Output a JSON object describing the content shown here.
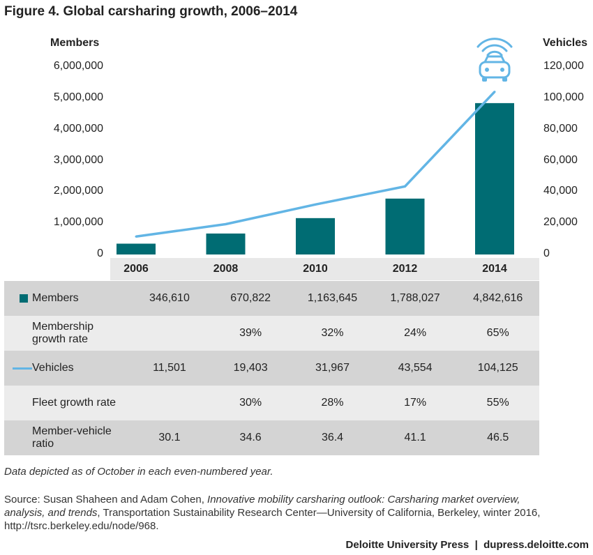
{
  "title": "Figure 4. Global carsharing growth, 2006–2014",
  "colors": {
    "members": "#006c73",
    "vehicles": "#62b5e5",
    "row_dark": "#d4d4d4",
    "row_light": "#ececec",
    "icon": "#62b5e5"
  },
  "chart_data": {
    "type": "bar",
    "categories": [
      "2006",
      "2008",
      "2010",
      "2012",
      "2014"
    ],
    "series": [
      {
        "name": "Members",
        "type": "bar",
        "axis": "left",
        "values": [
          346610,
          670822,
          1163645,
          1788027,
          4842616
        ]
      },
      {
        "name": "Vehicles",
        "type": "line",
        "axis": "right",
        "values": [
          11501,
          19403,
          31967,
          43554,
          104125
        ]
      }
    ],
    "ylabel": "Members",
    "y2label": "Vehicles",
    "ylim": [
      0,
      6000000
    ],
    "y2lim": [
      0,
      120000
    ],
    "yticks": [
      "6,000,000",
      "5,000,000",
      "4,000,000",
      "3,000,000",
      "2,000,000",
      "1,000,000",
      "0"
    ],
    "y2ticks": [
      "120,000",
      "100,000",
      "80,000",
      "60,000",
      "40,000",
      "20,000",
      "0"
    ],
    "grid": false,
    "icon": "connected-car-icon"
  },
  "table": {
    "rows": [
      {
        "label": "Members",
        "swatch": "box",
        "values": [
          "346,610",
          "670,822",
          "1,163,645",
          "1,788,027",
          "4,842,616"
        ]
      },
      {
        "label": "Membership growth rate",
        "swatch": "",
        "values": [
          "",
          "39%",
          "32%",
          "24%",
          "65%"
        ]
      },
      {
        "label": "Vehicles",
        "swatch": "line",
        "values": [
          "11,501",
          "19,403",
          "31,967",
          "43,554",
          "104,125"
        ]
      },
      {
        "label": "Fleet growth rate",
        "swatch": "",
        "values": [
          "",
          "30%",
          "28%",
          "17%",
          "55%"
        ]
      },
      {
        "label": "Member-vehicle ratio",
        "swatch": "",
        "values": [
          "30.1",
          "34.6",
          "36.4",
          "41.1",
          "46.5"
        ]
      }
    ]
  },
  "note": "Data depicted as of October in each even-numbered year.",
  "source": {
    "prefix": "Source: Susan Shaheen and Adam Cohen, ",
    "italic": "Innovative mobility carsharing outlook: Carsharing market overview, analysis, and trends",
    "suffix": ", Transportation Sustainability Research Center—University of California, Berkeley, winter 2016, http://tsrc.berkeley.edu/node/968."
  },
  "footer": "Deloitte University Press  |  dupress.deloitte.com"
}
